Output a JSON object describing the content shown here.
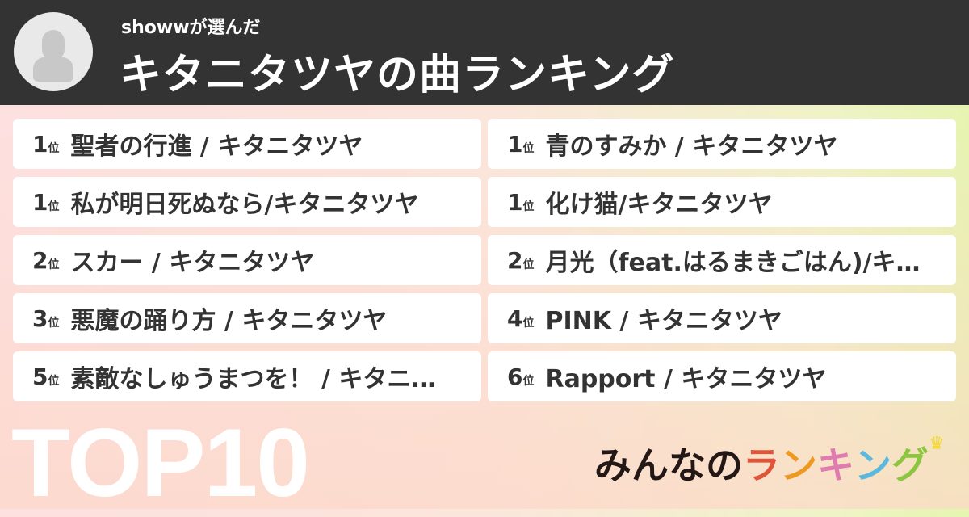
{
  "header": {
    "subtitle": "showwが選んだ",
    "title": "キタニタツヤの曲ランキング"
  },
  "rank_suffix": "位",
  "left": [
    {
      "rank": "1",
      "song": "聖者の行進 / キタニタツヤ"
    },
    {
      "rank": "1",
      "song": "私が明日死ぬなら/キタニタツヤ"
    },
    {
      "rank": "2",
      "song": "スカー / キタニタツヤ"
    },
    {
      "rank": "3",
      "song": "悪魔の踊り方 / キタニタツヤ"
    },
    {
      "rank": "5",
      "song": "素敵なしゅうまつを！ / キタニタツヤ"
    }
  ],
  "right": [
    {
      "rank": "1",
      "song": "青のすみか / キタニタツヤ"
    },
    {
      "rank": "1",
      "song": "化け猫/キタニタツヤ"
    },
    {
      "rank": "2",
      "song": "月光（feat.はるまきごはん)/キタニタツヤ"
    },
    {
      "rank": "4",
      "song": "PINK / キタニタツヤ"
    },
    {
      "rank": "6",
      "song": "Rapport / キタニタツヤ"
    }
  ],
  "badge": "TOP10",
  "logo": {
    "part1": "みんなの",
    "chars": [
      "ラ",
      "ン",
      "キ",
      "ン",
      "グ"
    ],
    "colors": [
      "#e0553a",
      "#ee9a22",
      "#e07bb0",
      "#5bb9dd",
      "#8cc63f"
    ],
    "dark": "#231815"
  }
}
